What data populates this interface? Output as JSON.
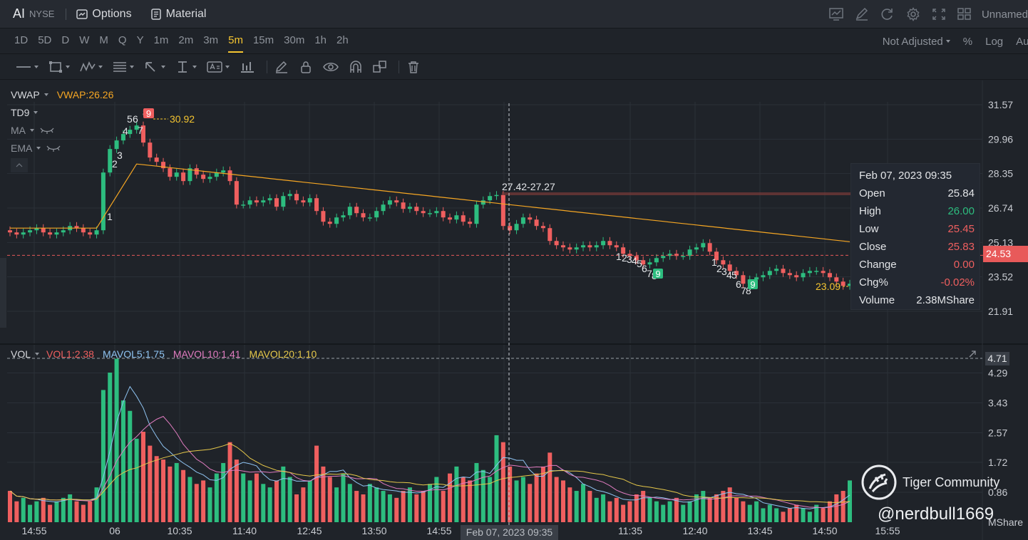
{
  "header": {
    "symbol": "AI",
    "exchange": "NYSE",
    "options_label": "Options",
    "material_label": "Material",
    "workspace_name": "Unnamed",
    "icons": [
      "chart-icon",
      "draw-icon",
      "refresh-icon",
      "gear-icon",
      "expand-icon",
      "layout-icon"
    ]
  },
  "periods": {
    "items": [
      "1D",
      "5D",
      "D",
      "W",
      "M",
      "Q",
      "Y",
      "1m",
      "2m",
      "3m",
      "5m",
      "15m",
      "30m",
      "1h",
      "2h"
    ],
    "active": "5m",
    "adjust_label": "Not Adjusted",
    "percent_label": "%",
    "log_label": "Log",
    "auto_label": "Auto"
  },
  "drawing_tools": [
    "line-tool-icon",
    "rect-tool-icon",
    "pattern-tool-icon",
    "fib-tool-icon",
    "arrow-tool-icon",
    "measure-tool-icon",
    "text-tool-icon",
    "bars-tool-icon",
    "pencil-icon",
    "lock-icon",
    "eye-icon",
    "magnet-icon",
    "clone-icon",
    "trash-icon"
  ],
  "indicators": {
    "vwap_name": "VWAP",
    "vwap_value": "VWAP:26.26",
    "td9": "TD9",
    "ma": "MA",
    "ema": "EMA",
    "vol_name": "VOL",
    "vol1": "VOL1:2.38",
    "mavol5": "MAVOL5:1.75",
    "mavol10": "MAVOL10:1.41",
    "mavol20": "MAVOL20:1.10"
  },
  "tooltip": {
    "date": "Feb 07, 2023 09:35",
    "rows": [
      {
        "label": "Open",
        "value": "25.84",
        "color": "#e3e5e8"
      },
      {
        "label": "High",
        "value": "26.00",
        "color": "#2dbd7f"
      },
      {
        "label": "Low",
        "value": "25.45",
        "color": "#ef5f5f"
      },
      {
        "label": "Close",
        "value": "25.83",
        "color": "#ef5f5f"
      },
      {
        "label": "Change",
        "value": "0.00",
        "color": "#ef5f5f"
      },
      {
        "label": "Chg%",
        "value": "-0.02%",
        "color": "#ef5f5f"
      },
      {
        "label": "Volume",
        "value": "2.38MShare",
        "color": "#e3e5e8"
      }
    ]
  },
  "current_price_tag": "24.53",
  "vol_axis_tag": "4.71",
  "x_cursor_label": "Feb 07, 2023 09:35",
  "watermark": {
    "community": "Tiger Community",
    "handle": "@nerdbull1669"
  },
  "colors": {
    "up": "#2dbd7f",
    "down": "#ef5f5f",
    "vwap": "#f5a623",
    "mavol5": "#8fc4f2",
    "mavol10": "#e07cc0",
    "mavol20": "#e6c84a",
    "accent": "#f4c430"
  },
  "chart_data": [
    {
      "type": "candlestick",
      "title": "",
      "y_ticks": [
        "31.57",
        "29.96",
        "28.35",
        "26.74",
        "25.13",
        "23.52",
        "21.91"
      ],
      "ylim": [
        21.91,
        31.57
      ],
      "x_ticks": [
        "14:55",
        "06",
        "10:35",
        "11:40",
        "12:45",
        "13:50",
        "14:55",
        "11:35",
        "12:40",
        "13:45",
        "14:50",
        "15:55"
      ],
      "annotations": {
        "high_label": "30.92",
        "low_label": "23.09",
        "range_label": "27.42-27.27",
        "current_price": "24.53",
        "td_first_run": [
          "1",
          "2",
          "3",
          "4",
          "5",
          "6",
          "7",
          "8",
          "9"
        ],
        "td_second_run": [
          "1",
          "2",
          "3",
          "4",
          "5",
          "6",
          "7",
          "8",
          "9"
        ],
        "td_third_run": [
          "1",
          "2",
          "3",
          "4",
          "5",
          "6",
          "7",
          "8",
          "9"
        ]
      },
      "close_series": [
        25.6,
        25.5,
        25.6,
        25.7,
        25.8,
        25.6,
        25.5,
        25.6,
        25.7,
        25.9,
        25.8,
        25.6,
        25.5,
        25.7,
        28.4,
        29.5,
        29.9,
        30.2,
        30.4,
        30.6,
        29.8,
        29.1,
        28.9,
        28.6,
        28.2,
        28.4,
        28.0,
        28.6,
        28.3,
        28.1,
        28.2,
        28.4,
        28.5,
        28.0,
        26.9,
        26.9,
        27.1,
        27.0,
        27.1,
        27.2,
        26.8,
        27.3,
        27.4,
        27.1,
        27.0,
        27.2,
        26.6,
        26.1,
        26.0,
        26.3,
        26.4,
        26.8,
        26.5,
        26.3,
        26.3,
        26.6,
        26.9,
        27.1,
        27.0,
        26.7,
        26.8,
        26.6,
        26.5,
        26.5,
        26.6,
        26.3,
        26.2,
        26.4,
        26.1,
        26.0,
        26.9,
        27.1,
        27.3,
        27.35,
        25.9,
        25.7,
        26.0,
        26.3,
        26.2,
        25.9,
        25.8,
        25.2,
        25.0,
        24.9,
        24.8,
        24.9,
        25.0,
        24.9,
        25.0,
        25.2,
        25.0,
        24.9,
        24.6,
        24.5,
        24.3,
        24.1,
        24.2,
        24.4,
        24.5,
        24.6,
        24.5,
        24.5,
        24.8,
        24.9,
        25.1,
        24.7,
        24.3,
        24.1,
        23.8,
        23.6,
        23.2,
        23.4,
        23.5,
        23.6,
        23.8,
        23.9,
        23.7,
        23.6,
        23.5,
        23.7,
        23.8,
        23.8,
        23.7,
        23.5,
        23.3,
        23.1,
        23.2
      ],
      "vwap_start_end": [
        25.8,
        25.13
      ],
      "vwap_value": 26.26
    },
    {
      "type": "bar",
      "title": "",
      "y_ticks": [
        "4.29",
        "3.43",
        "2.57",
        "1.72",
        "0.86"
      ],
      "ylim": [
        0,
        4.71
      ],
      "unit": "MShare",
      "series": [
        {
          "name": "VOL1:2.38",
          "values": [
            0.9,
            0.6,
            0.7,
            0.5,
            0.6,
            0.7,
            0.5,
            0.6,
            0.7,
            0.8,
            0.6,
            0.5,
            0.6,
            1.0,
            3.8,
            4.3,
            4.7,
            3.5,
            3.2,
            2.4,
            2.6,
            2.2,
            1.9,
            1.8,
            1.6,
            1.7,
            1.5,
            1.3,
            1.1,
            1.2,
            1.0,
            1.4,
            1.7,
            2.3,
            1.8,
            1.4,
            1.2,
            1.4,
            1.1,
            1.0,
            1.2,
            1.6,
            1.3,
            0.8,
            1.0,
            1.2,
            2.2,
            1.6,
            1.3,
            1.0,
            1.4,
            1.1,
            0.9,
            0.8,
            1.1,
            1.0,
            0.9,
            0.8,
            0.7,
            0.9,
            1.0,
            0.8,
            0.9,
            1.1,
            1.3,
            0.9,
            1.4,
            1.6,
            1.3,
            1.2,
            1.7,
            1.5,
            1.3,
            2.5,
            2.3,
            1.6,
            1.2,
            1.3,
            1.1,
            1.4,
            1.6,
            2.0,
            1.3,
            1.2,
            1.0,
            0.9,
            1.1,
            0.9,
            0.7,
            0.8,
            0.6,
            0.7,
            0.5,
            0.6,
            0.8,
            0.9,
            0.7,
            0.6,
            0.5,
            0.6,
            0.7,
            0.5,
            0.6,
            0.8,
            0.9,
            0.7,
            0.8,
            0.9,
            1.0,
            0.7,
            0.6,
            0.5,
            0.6,
            0.4,
            0.5,
            0.4,
            0.3,
            0.4,
            0.5,
            0.4,
            0.3,
            0.5,
            0.4,
            0.6,
            0.8,
            0.9,
            1.2
          ]
        },
        {
          "name": "MAVOL5:1.75",
          "values": []
        },
        {
          "name": "MAVOL10:1.41",
          "values": []
        },
        {
          "name": "MAVOL20:1.10",
          "values": []
        }
      ]
    }
  ]
}
